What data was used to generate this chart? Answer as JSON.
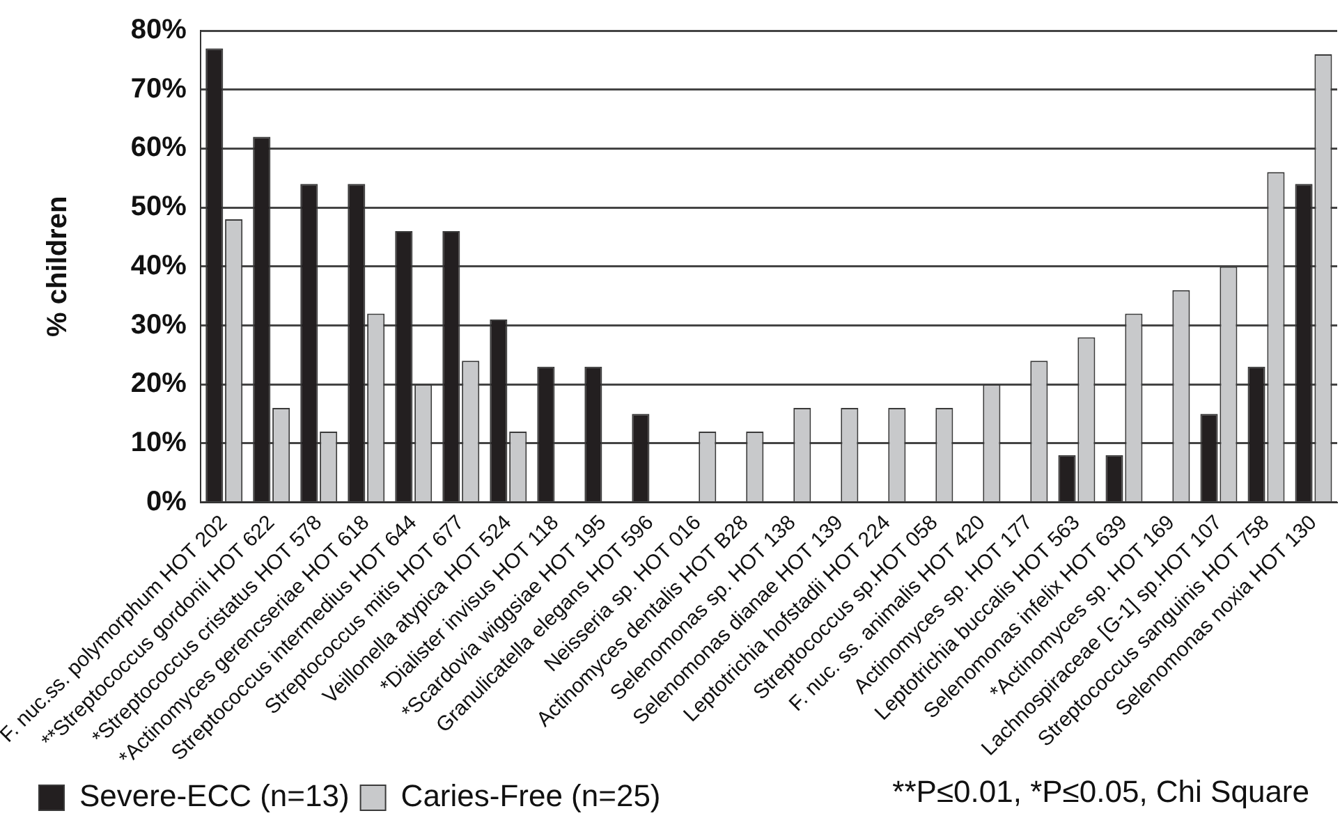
{
  "chart_data": {
    "type": "bar",
    "ylabel": "% children",
    "categories": [
      "F. nuc.ss. polymorphum HOT 202",
      "**Streptococcus gordonii HOT 622",
      "*Streptococcus cristatus HOT 578",
      "*Actinomyces gerencseriae HOT 618",
      "Streptococcus intermedius HOT 644",
      "Streptococcus mitis HOT 677",
      "Veillonella atypica HOT 524",
      "*Dialister invisus HOT 118",
      "*Scardovia wiggsiae HOT 195",
      "Granulicatella elegans HOT 596",
      "Neisseria sp. HOT 016",
      "Actinomyces dentalis HOT B28",
      "Selenomonas sp. HOT 138",
      "Selenomonas dianae HOT 139",
      "Leptotrichia hofstadii HOT 224",
      "Streptococcus sp.HOT 058",
      "F. nuc. ss. animalis HOT 420",
      "Actinomyces sp. HOT 177",
      "Leptotrichia buccalis HOT 563",
      "Selenomonas infelix HOT 639",
      "*Actinomyces sp. HOT 169",
      "Lachnospiraceae [G-1] sp.HOT 107",
      "Streptococcus sanguinis HOT 758",
      "Selenomonas noxia HOT 130"
    ],
    "series": [
      {
        "name": "Severe-ECC (n=13)",
        "color": "#231f20",
        "values": [
          77,
          62,
          54,
          54,
          46,
          46,
          31,
          23,
          23,
          15,
          0,
          0,
          0,
          0,
          0,
          0,
          0,
          0,
          8,
          8,
          0,
          15,
          23,
          54
        ]
      },
      {
        "name": "Caries-Free (n=25)",
        "color": "#c8c9cb",
        "values": [
          48,
          16,
          12,
          32,
          20,
          24,
          12,
          0,
          0,
          0,
          12,
          12,
          16,
          16,
          16,
          16,
          20,
          24,
          28,
          32,
          36,
          40,
          56,
          76
        ]
      }
    ],
    "ylim": [
      0,
      80
    ],
    "yticks": [
      {
        "value": 0,
        "label": "0%"
      },
      {
        "value": 10,
        "label": "10%"
      },
      {
        "value": 20,
        "label": "20%"
      },
      {
        "value": 30,
        "label": "30%"
      },
      {
        "value": 40,
        "label": "40%"
      },
      {
        "value": 50,
        "label": "50%"
      },
      {
        "value": 60,
        "label": "60%"
      },
      {
        "value": 70,
        "label": "70%"
      },
      {
        "value": 80,
        "label": "80%"
      }
    ],
    "grid": "y",
    "legend": "bottom left",
    "annotations": [
      "**P≤0.01, *P≤0.05, Chi Square"
    ]
  }
}
